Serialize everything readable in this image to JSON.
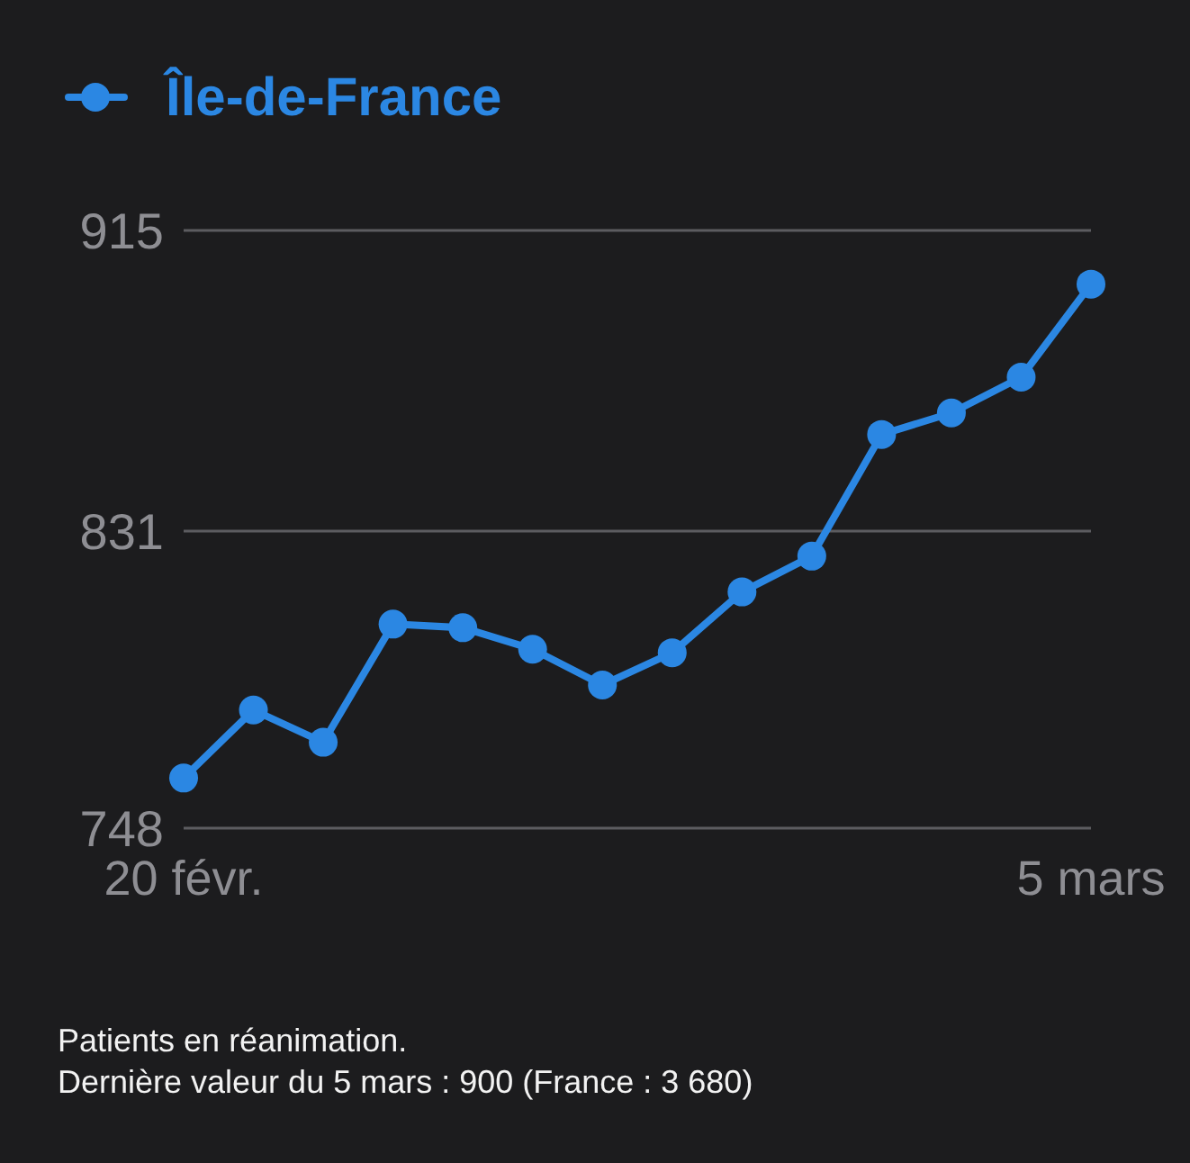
{
  "chart_data": {
    "type": "line",
    "x": [
      "--02-20",
      "--02-21",
      "--02-22",
      "--02-23",
      "--02-24",
      "--02-25",
      "--02-26",
      "--02-27",
      "--02-28",
      "--03-01",
      "--03-02",
      "--03-03",
      "--03-04",
      "--03-05"
    ],
    "series": [
      {
        "name": "Île-de-France",
        "color": "#2b87e3",
        "values": [
          762,
          781,
          772,
          805,
          804,
          798,
          788,
          797,
          814,
          824,
          858,
          864,
          874,
          900
        ]
      }
    ],
    "xlim": [
      "--02-20",
      "--03-05"
    ],
    "xticks": [
      {
        "value": "--02-20",
        "label": "20 févr."
      },
      {
        "value": "--03-05",
        "label": "5 mars"
      }
    ],
    "ylim": [
      748,
      915
    ],
    "yticks": [
      748,
      831,
      915
    ],
    "grid": "y",
    "legend": "top left",
    "marker": "circle",
    "line_style": "solid",
    "annotations": [
      "Patients en réanimation.",
      "Dernière valeur du 5 mars : 900 (France : 3 680)"
    ]
  }
}
